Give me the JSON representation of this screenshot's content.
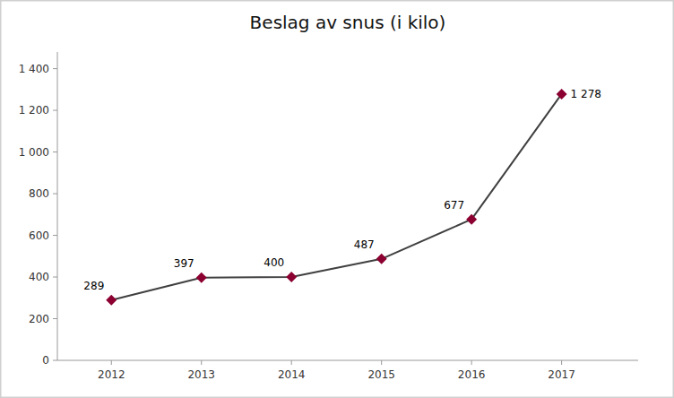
{
  "chart_data": {
    "type": "line",
    "title": "Beslag av snus (i kilo)",
    "x": [
      2012,
      2013,
      2014,
      2015,
      2016,
      2017
    ],
    "values": [
      289,
      397,
      400,
      487,
      677,
      1278
    ],
    "value_labels": [
      "289",
      "397",
      "400",
      "487",
      "677",
      "1 278"
    ],
    "data_labels": true,
    "color": "#404040",
    "colors": [
      "#8b0030",
      "#8b0030",
      "#8b0030",
      "#8b0030",
      "#8b0030",
      "#8b0030"
    ],
    "marker": "diamond",
    "xlim": [
      2011.4,
      2017.85
    ],
    "xticks": [
      2012,
      2013,
      2014,
      2015,
      2016,
      2017
    ],
    "ylim": [
      0,
      1480
    ],
    "yticks": [
      0,
      200,
      400,
      600,
      800,
      {
        "value": 1000,
        "label": "1 000"
      },
      {
        "value": 1200,
        "label": "1 200"
      },
      {
        "value": 1400,
        "label": "1 400"
      }
    ],
    "grid": false
  }
}
